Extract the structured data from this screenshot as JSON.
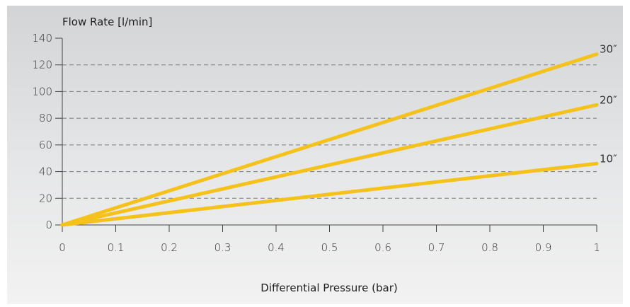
{
  "chart_data": {
    "type": "line",
    "ylabel": "Flow Rate [l/min]",
    "xlabel": "Differential Pressure (bar)",
    "xlim": [
      0,
      1
    ],
    "ylim": [
      0,
      140
    ],
    "x_ticks": [
      "0",
      "0.1",
      "0.2",
      "0.3",
      "0.4",
      "0.5",
      "0.6",
      "0.7",
      "0.8",
      "0.9",
      "1"
    ],
    "y_ticks": [
      "0",
      "20",
      "40",
      "60",
      "80",
      "100",
      "120",
      "140"
    ],
    "grid": "horizontal dashed",
    "series": [
      {
        "name": "30″",
        "x": [
          0,
          1
        ],
        "values": [
          0,
          128
        ]
      },
      {
        "name": "20″",
        "x": [
          0,
          1
        ],
        "values": [
          0,
          90
        ]
      },
      {
        "name": "10″",
        "x": [
          0,
          1
        ],
        "values": [
          0,
          46
        ]
      }
    ],
    "colors": {
      "line": "#f5c21b",
      "grid": "#7a7a7a",
      "axis": "#444444",
      "background": "#e2e3e4"
    }
  }
}
